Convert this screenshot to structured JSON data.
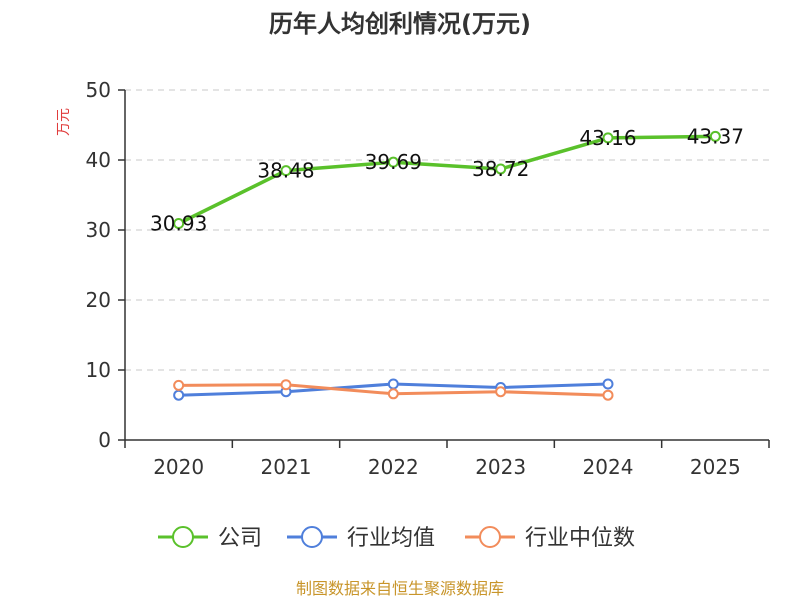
{
  "chart_data": {
    "type": "line",
    "title": "历年人均创利情况(万元)",
    "ylabel": "万元",
    "xlabel": "",
    "categories": [
      "2020",
      "2021",
      "2022",
      "2023",
      "2024",
      "2025"
    ],
    "ylim": [
      0,
      50
    ],
    "yticks": [
      0,
      10,
      20,
      30,
      40,
      50
    ],
    "grid": true,
    "legend_position": "bottom",
    "series": [
      {
        "name": "公司",
        "color": "#5ac12b",
        "values": [
          30.93,
          38.48,
          39.69,
          38.72,
          43.16,
          43.37
        ],
        "labels": [
          "30.93",
          "38.48",
          "39.69",
          "38.72",
          "43.16",
          "43.37"
        ]
      },
      {
        "name": "行业均值",
        "color": "#4f7fdb",
        "values": [
          6.4,
          6.9,
          8.0,
          7.5,
          8.0,
          null
        ]
      },
      {
        "name": "行业中位数",
        "color": "#f28c5b",
        "values": [
          7.8,
          7.9,
          6.6,
          6.9,
          6.4,
          null
        ]
      }
    ]
  },
  "footer": {
    "source": "制图数据来自恒生聚源数据库"
  }
}
